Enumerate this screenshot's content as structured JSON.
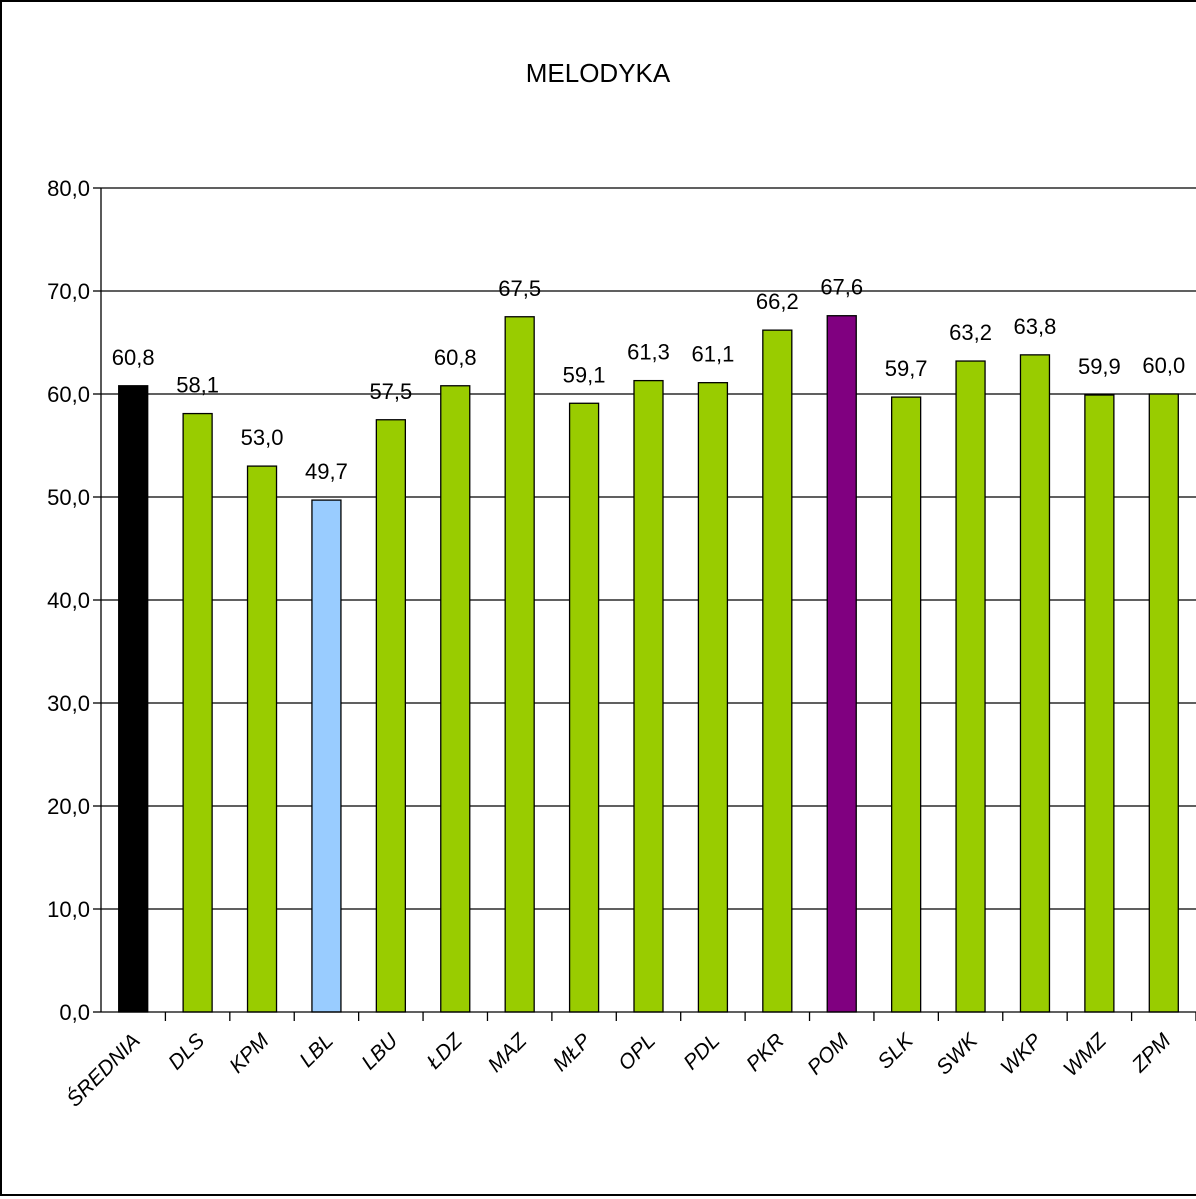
{
  "chart_data": {
    "type": "bar",
    "title": "MELODYKA",
    "xlabel": "",
    "ylabel": "",
    "ylim": [
      0,
      80
    ],
    "yticks": [
      "0,0",
      "10,0",
      "20,0",
      "30,0",
      "40,0",
      "50,0",
      "60,0",
      "70,0",
      "80,0"
    ],
    "grid": "horizontal",
    "legend": "none",
    "categories": [
      "ŚREDNIA",
      "DLS",
      "KPM",
      "LBL",
      "LBU",
      "ŁDZ",
      "MAZ",
      "MŁP",
      "OPL",
      "PDL",
      "PKR",
      "POM",
      "SLK",
      "SWK",
      "WKP",
      "WMZ",
      "ZPM"
    ],
    "values": [
      60.8,
      58.1,
      53.0,
      49.7,
      57.5,
      60.8,
      67.5,
      59.1,
      61.3,
      61.1,
      66.2,
      67.6,
      59.7,
      63.2,
      63.8,
      59.9,
      60.0
    ],
    "value_labels": [
      "60,8",
      "58,1",
      "53,0",
      "49,7",
      "57,5",
      "60,8",
      "67,5",
      "59,1",
      "61,3",
      "61,1",
      "66,2",
      "67,6",
      "59,7",
      "63,2",
      "63,8",
      "59,9",
      "60,0"
    ],
    "bar_colors": [
      "#000000",
      "#99cc00",
      "#99cc00",
      "#99ccff",
      "#99cc00",
      "#99cc00",
      "#99cc00",
      "#99cc00",
      "#99cc00",
      "#99cc00",
      "#99cc00",
      "#800080",
      "#99cc00",
      "#99cc00",
      "#99cc00",
      "#99cc00",
      "#99cc00"
    ]
  }
}
